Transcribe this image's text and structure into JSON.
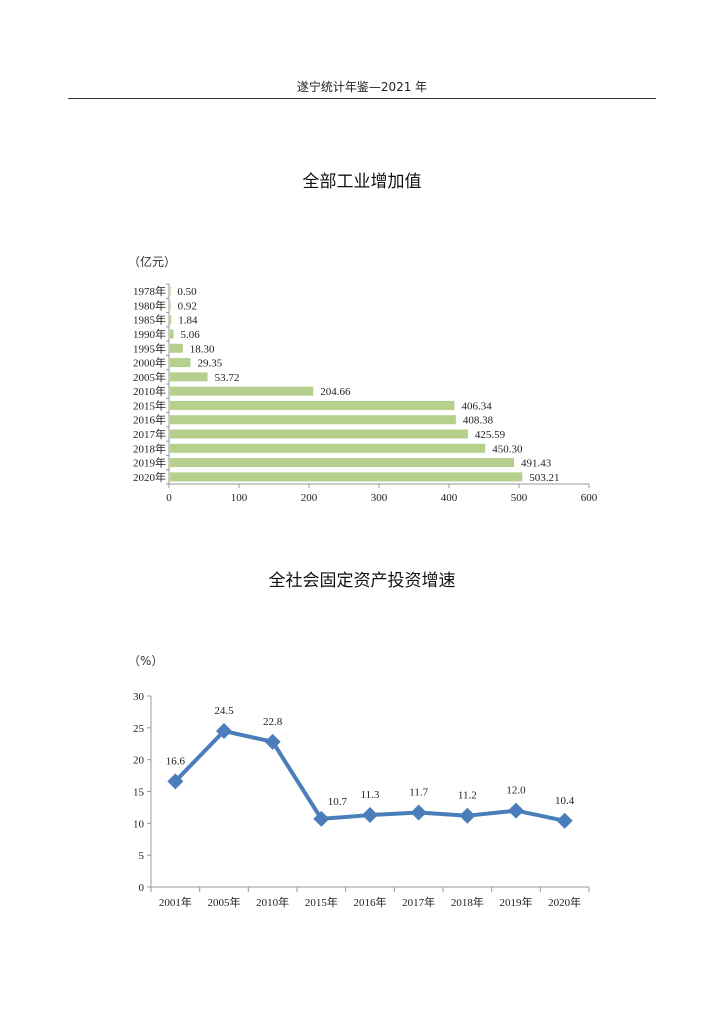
{
  "header": {
    "title": "遂宁统计年鉴—2021 年"
  },
  "chart_data": [
    {
      "type": "bar",
      "orientation": "horizontal",
      "title": "全部工业增加值",
      "unit": "（亿元）",
      "categories": [
        "1978年",
        "1980年",
        "1985年",
        "1990年",
        "1995年",
        "2000年",
        "2005年",
        "2010年",
        "2015年",
        "2016年",
        "2017年",
        "2018年",
        "2019年",
        "2020年"
      ],
      "values": [
        0.5,
        0.92,
        1.84,
        5.06,
        18.3,
        29.35,
        53.72,
        204.66,
        406.34,
        408.38,
        425.59,
        450.3,
        491.43,
        503.21
      ],
      "labels": [
        "0.50",
        "0.92",
        "1.84",
        "5.06",
        "18.30",
        "29.35",
        "53.72",
        "204.66",
        "406.34",
        "408.38",
        "425.59",
        "450.30",
        "491.43",
        "503.21"
      ],
      "xticks": [
        "0",
        "100",
        "200",
        "300",
        "400",
        "500",
        "600"
      ],
      "xlim": [
        0,
        600
      ],
      "bar_color": "#b5cf8c",
      "grid": false,
      "legend": null
    },
    {
      "type": "line",
      "title": "全社会固定资产投资增速",
      "unit": "（%）",
      "categories": [
        "2001年",
        "2005年",
        "2010年",
        "2015年",
        "2016年",
        "2017年",
        "2018年",
        "2019年",
        "2020年"
      ],
      "values": [
        16.6,
        24.5,
        22.8,
        10.7,
        11.3,
        11.7,
        11.2,
        12.0,
        10.4
      ],
      "labels": [
        "16.6",
        "24.5",
        "22.8",
        "10.7",
        "11.3",
        "11.7",
        "11.2",
        "12.0",
        "10.4"
      ],
      "yticks": [
        "0",
        "5",
        "10",
        "15",
        "20",
        "25",
        "30"
      ],
      "ylim": [
        0,
        30
      ],
      "line_color": "#4a7ebb",
      "marker": "diamond",
      "grid": false,
      "legend": null
    }
  ]
}
